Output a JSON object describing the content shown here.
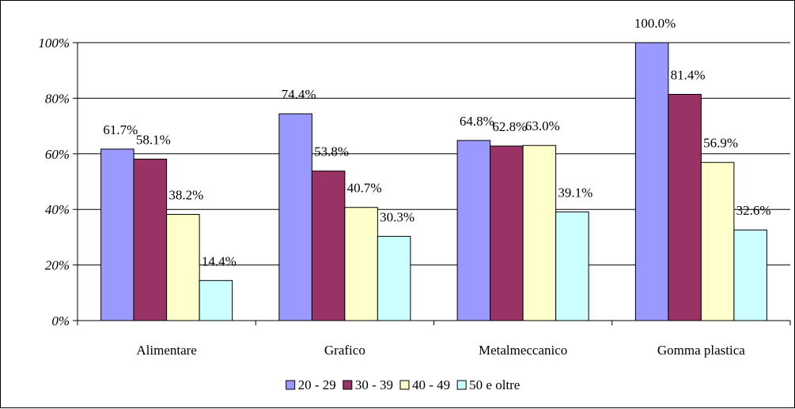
{
  "chart_data": {
    "type": "bar",
    "categories": [
      "Alimentare",
      "Grafico",
      "Metalmeccanico",
      "Gomma plastica"
    ],
    "series": [
      {
        "name": "20 - 29",
        "color": "#9999ff",
        "values": [
          61.7,
          74.4,
          64.8,
          100.0
        ],
        "labels": [
          "61.7%",
          "74.4%",
          "64.8%",
          "100.0%"
        ]
      },
      {
        "name": "30 - 39",
        "color": "#993366",
        "values": [
          58.1,
          53.8,
          62.8,
          81.4
        ],
        "labels": [
          "58.1%",
          "53.8%",
          "62.8%",
          "81.4%"
        ]
      },
      {
        "name": "40 - 49",
        "color": "#ffffcc",
        "values": [
          38.2,
          40.7,
          63.0,
          56.9
        ],
        "labels": [
          "38.2%",
          "40.7%",
          "63.0%",
          "56.9%"
        ]
      },
      {
        "name": "50 e oltre",
        "color": "#ccffff",
        "values": [
          14.4,
          30.3,
          39.1,
          32.6
        ],
        "labels": [
          "14.4%",
          "30.3%",
          "39.1%",
          "32.6%"
        ]
      }
    ],
    "y_ticks": [
      "0%",
      "20%",
      "40%",
      "60%",
      "80%",
      "100%"
    ],
    "y_tick_values": [
      0,
      20,
      40,
      60,
      80,
      100
    ],
    "ylim": [
      0,
      100
    ],
    "grid": true,
    "legend_position": "bottom"
  }
}
